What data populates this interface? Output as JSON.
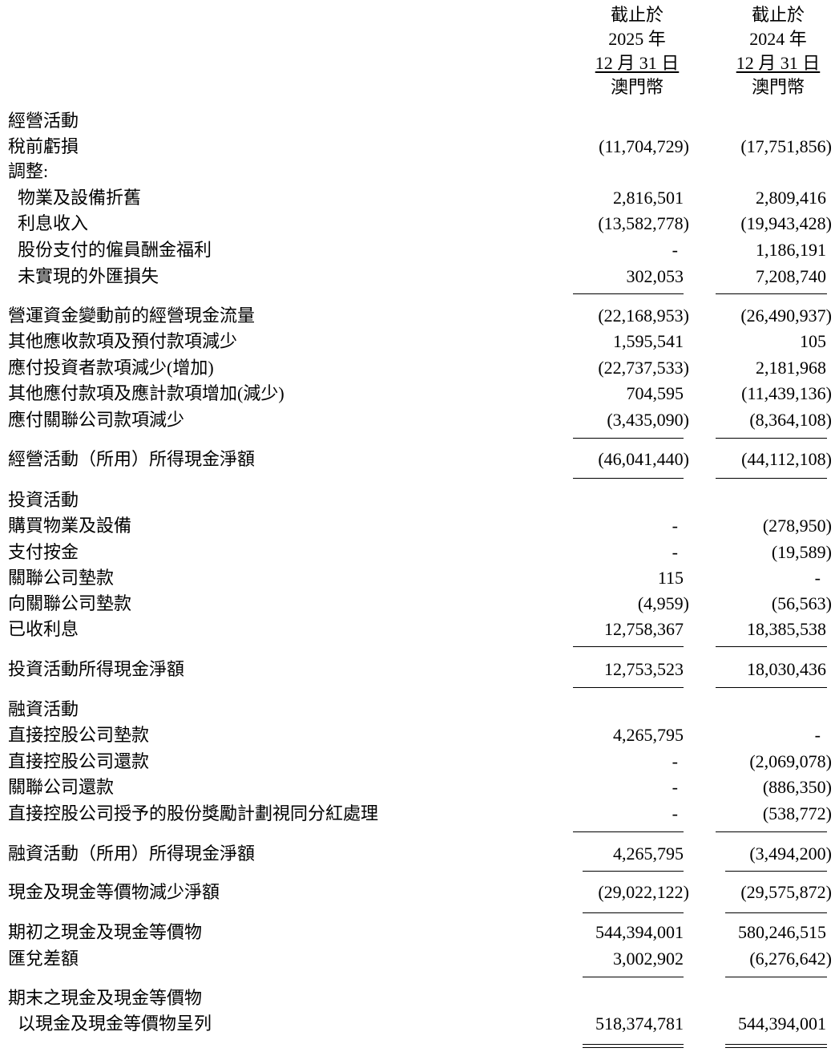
{
  "header": {
    "col1": [
      "截止於",
      "2025 年",
      "12 月 31 日",
      "澳門幣"
    ],
    "col2": [
      "截止於",
      "2024 年",
      "12 月 31 日",
      "澳門幣"
    ]
  },
  "rows": [
    {
      "label": "經營活動",
      "v1": "",
      "v2": ""
    },
    {
      "label": "稅前虧損",
      "v1": "(11,704,729)",
      "v2": "(17,751,856)"
    },
    {
      "label": "調整:",
      "v1": "",
      "v2": ""
    },
    {
      "label": "物業及設備折舊",
      "v1": "2,816,501",
      "v2": "2,809,416"
    },
    {
      "label": "利息收入",
      "v1": "(13,582,778)",
      "v2": "(19,943,428)"
    },
    {
      "label": "股份支付的僱員酬金福利",
      "v1": "-",
      "v2": "1,186,191"
    },
    {
      "label": "未實現的外匯損失",
      "v1": "302,053",
      "v2": "7,208,740"
    },
    {
      "label": "營運資金變動前的經營現金流量",
      "v1": "(22,168,953)",
      "v2": "(26,490,937)"
    },
    {
      "label": "其他應收款項及預付款項減少",
      "v1": "1,595,541",
      "v2": "105"
    },
    {
      "label": "應付投資者款項減少(增加)",
      "v1": "(22,737,533)",
      "v2": "2,181,968"
    },
    {
      "label": "其他應付款項及應計款項增加(減少)",
      "v1": "704,595",
      "v2": "(11,439,136)"
    },
    {
      "label": "應付關聯公司款項減少",
      "v1": "(3,435,090)",
      "v2": "(8,364,108)"
    },
    {
      "label": "經營活動（所用）所得現金淨額",
      "v1": "(46,041,440)",
      "v2": "(44,112,108)"
    },
    {
      "label": "投資活動",
      "v1": "",
      "v2": ""
    },
    {
      "label": "購買物業及設備",
      "v1": "-",
      "v2": "(278,950)"
    },
    {
      "label": "支付按金",
      "v1": "-",
      "v2": "(19,589)"
    },
    {
      "label": "關聯公司墊款",
      "v1": "115",
      "v2": "-"
    },
    {
      "label": "向關聯公司墊款",
      "v1": "(4,959)",
      "v2": "(56,563)"
    },
    {
      "label": "已收利息",
      "v1": "12,758,367",
      "v2": "18,385,538"
    },
    {
      "label": "投資活動所得現金淨額",
      "v1": "12,753,523",
      "v2": "18,030,436"
    },
    {
      "label": "融資活動",
      "v1": "",
      "v2": ""
    },
    {
      "label": "直接控股公司墊款",
      "v1": "4,265,795",
      "v2": "-"
    },
    {
      "label": "直接控股公司還款",
      "v1": "-",
      "v2": "(2,069,078)"
    },
    {
      "label": "關聯公司還款",
      "v1": "-",
      "v2": "(886,350)"
    },
    {
      "label": "直接控股公司授予的股份獎勵計劃視同分紅處理",
      "v1": "-",
      "v2": "(538,772)"
    },
    {
      "label": "融資活動（所用）所得現金淨額",
      "v1": "4,265,795",
      "v2": "(3,494,200)"
    },
    {
      "label": "現金及現金等價物減少淨額",
      "v1": "(29,022,122)",
      "v2": "(29,575,872)"
    },
    {
      "label": "期初之現金及現金等價物",
      "v1": "544,394,001",
      "v2": "580,246,515"
    },
    {
      "label": "匯兌差額",
      "v1": "3,002,902",
      "v2": "(6,276,642)"
    },
    {
      "label": "期末之現金及現金等價物",
      "v1": "",
      "v2": ""
    },
    {
      "label": "以現金及現金等價物呈列",
      "v1": "518,374,781",
      "v2": "544,394,001"
    }
  ]
}
